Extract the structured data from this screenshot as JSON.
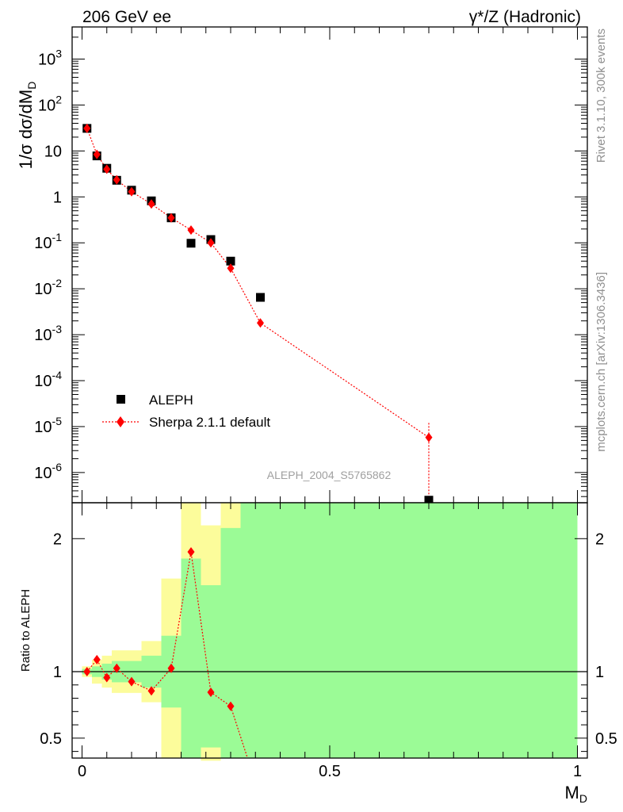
{
  "header": {
    "left": "206 GeV ee",
    "right": "γ*/Z (Hadronic)"
  },
  "side_text": {
    "rivet": "Rivet 3.1.10,  300k events",
    "mcplots": "mcplots.cern.ch [arXiv:1306.3436]"
  },
  "chart_data": [
    {
      "type": "scatter",
      "title": "",
      "xlabel": "M_D",
      "ylabel": "1/σ  dσ/dM_D",
      "yscale": "log",
      "xlim": [
        -0.02,
        1.02
      ],
      "ylim": [
        2.2e-07,
        5000
      ],
      "analysis_label": "ALEPH_2004_S5765862",
      "legend_position": "bottom-left",
      "y_tick_labels": [
        "10^3",
        "10^2",
        "10",
        "1",
        "10^-1",
        "10^-2",
        "10^-3",
        "10^-4",
        "10^-5",
        "10^-6"
      ],
      "series": [
        {
          "name": "ALEPH",
          "color": "#000000",
          "marker": "square",
          "x": [
            0.01,
            0.03,
            0.05,
            0.07,
            0.1,
            0.14,
            0.18,
            0.22,
            0.26,
            0.3,
            0.36,
            0.7
          ],
          "values": [
            31,
            7.8,
            4.2,
            2.3,
            1.4,
            0.82,
            0.35,
            0.098,
            0.118,
            0.04,
            0.0065,
            2.5e-07
          ]
        },
        {
          "name": "Sherpa 2.1.1 default",
          "color": "#ff0000",
          "marker": "diamond",
          "line": "dotted",
          "x": [
            0.01,
            0.03,
            0.05,
            0.07,
            0.1,
            0.14,
            0.18,
            0.22,
            0.26,
            0.3,
            0.36,
            0.7
          ],
          "values": [
            31,
            8.4,
            4.0,
            2.35,
            1.3,
            0.7,
            0.35,
            0.19,
            0.1,
            0.028,
            0.0018,
            5.8e-06
          ],
          "error_last": [
            1e-06,
            1.2e-05
          ]
        }
      ]
    },
    {
      "type": "scatter",
      "title": "",
      "xlabel": "M_D",
      "ylabel": "Ratio to ALEPH",
      "xlim": [
        -0.02,
        1.02
      ],
      "ylim": [
        0.35,
        2.27
      ],
      "x_ticks": [
        0,
        0.5,
        1
      ],
      "x_tick_labels": [
        "0",
        "0.5",
        "1"
      ],
      "y_ticks": [
        0.5,
        1,
        2
      ],
      "y_tick_labels": [
        "0.5",
        "1",
        "2"
      ],
      "reference_line": 1,
      "bins": [
        {
          "lo": 0.0,
          "hi": 0.02,
          "green": [
            0.98,
            1.02
          ],
          "yellow": [
            0.96,
            1.04
          ]
        },
        {
          "lo": 0.02,
          "hi": 0.04,
          "green": [
            0.96,
            1.04
          ],
          "yellow": [
            0.91,
            1.09
          ]
        },
        {
          "lo": 0.04,
          "hi": 0.06,
          "green": [
            0.94,
            1.06
          ],
          "yellow": [
            0.88,
            1.12
          ]
        },
        {
          "lo": 0.06,
          "hi": 0.08,
          "green": [
            0.92,
            1.08
          ],
          "yellow": [
            0.84,
            1.16
          ]
        },
        {
          "lo": 0.08,
          "hi": 0.12,
          "green": [
            0.92,
            1.08
          ],
          "yellow": [
            0.84,
            1.16
          ]
        },
        {
          "lo": 0.12,
          "hi": 0.16,
          "green": [
            0.88,
            1.12
          ],
          "yellow": [
            0.77,
            1.23
          ]
        },
        {
          "lo": 0.16,
          "hi": 0.2,
          "green": [
            0.73,
            1.27
          ],
          "yellow": [
            0.28,
            1.7
          ]
        },
        {
          "lo": 0.2,
          "hi": 0.24,
          "green": [
            0.28,
            1.85
          ],
          "yellow": [
            0.28,
            2.4
          ]
        },
        {
          "lo": 0.24,
          "hi": 0.28,
          "green": [
            0.43,
            1.65
          ],
          "yellow": [
            0.28,
            2.1
          ]
        },
        {
          "lo": 0.28,
          "hi": 0.32,
          "green": [
            0.28,
            2.08
          ],
          "yellow": [
            0.28,
            2.4
          ]
        },
        {
          "lo": 0.32,
          "hi": 1.0,
          "green": [
            0.28,
            2.4
          ],
          "yellow": [
            0.28,
            2.4
          ]
        }
      ],
      "series": [
        {
          "name": "Sherpa 2.1.1 default / ALEPH",
          "color": "#ff0000",
          "x": [
            0.01,
            0.03,
            0.05,
            0.07,
            0.1,
            0.14,
            0.18,
            0.22,
            0.26,
            0.3
          ],
          "values": [
            1.0,
            1.09,
            0.955,
            1.025,
            0.925,
            0.855,
            1.025,
            1.9,
            0.845,
            0.74
          ],
          "continues_to": {
            "x": 0.334,
            "value": 0.35
          }
        }
      ]
    }
  ],
  "colors": {
    "band_green": "#9bfb96",
    "band_yellow": "#fcfc9b",
    "data": "#000000",
    "mc": "#ff0000"
  }
}
